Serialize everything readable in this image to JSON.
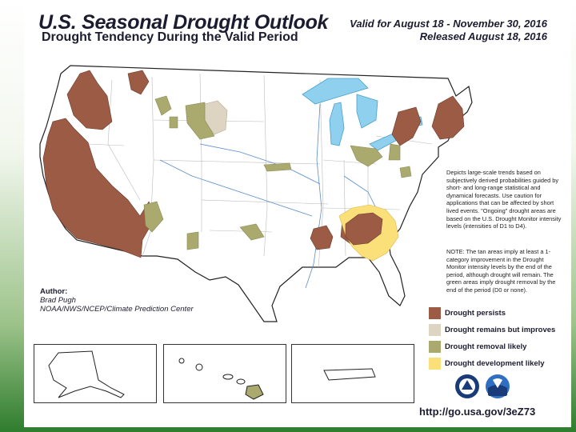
{
  "header": {
    "title": "U.S. Seasonal Drought Outlook",
    "subtitle": "Drought Tendency During the Valid Period",
    "valid": "Valid for August 18 - November 30, 2016",
    "released": "Released August 18, 2016"
  },
  "notes": {
    "description": "Depicts large-scale trends based on subjectively derived probabilities guided by short- and long-range statistical and dynamical forecasts. Use caution for applications that can be affected by short lived events. \"Ongoing\" drought areas are based on the U.S. Drought Monitor intensity levels (intensities of D1 to D4).",
    "tan_note": "NOTE: The tan areas imply at least a 1-category improvement in the Drought Monitor intensity levels by the end of the period, although drought will remain. The green areas imply drought removal by the end of the period (D0 or none)."
  },
  "author": {
    "label": "Author:",
    "name": "Brad Pugh",
    "org": "NOAA/NWS/NCEP/Climate Prediction Center"
  },
  "legend": [
    {
      "label": "Drought persists",
      "color": "#9c5b45"
    },
    {
      "label": "Drought remains but improves",
      "color": "#ddd4c1"
    },
    {
      "label": "Drought removal likely",
      "color": "#aaaa6e"
    },
    {
      "label": "Drought development likely",
      "color": "#fbe07a"
    }
  ],
  "colors": {
    "water": "#8fd0ee"
  },
  "footer": {
    "url": "http://go.usa.gov/3eZ73"
  },
  "logos": [
    "nws-logo",
    "noaa-logo"
  ]
}
